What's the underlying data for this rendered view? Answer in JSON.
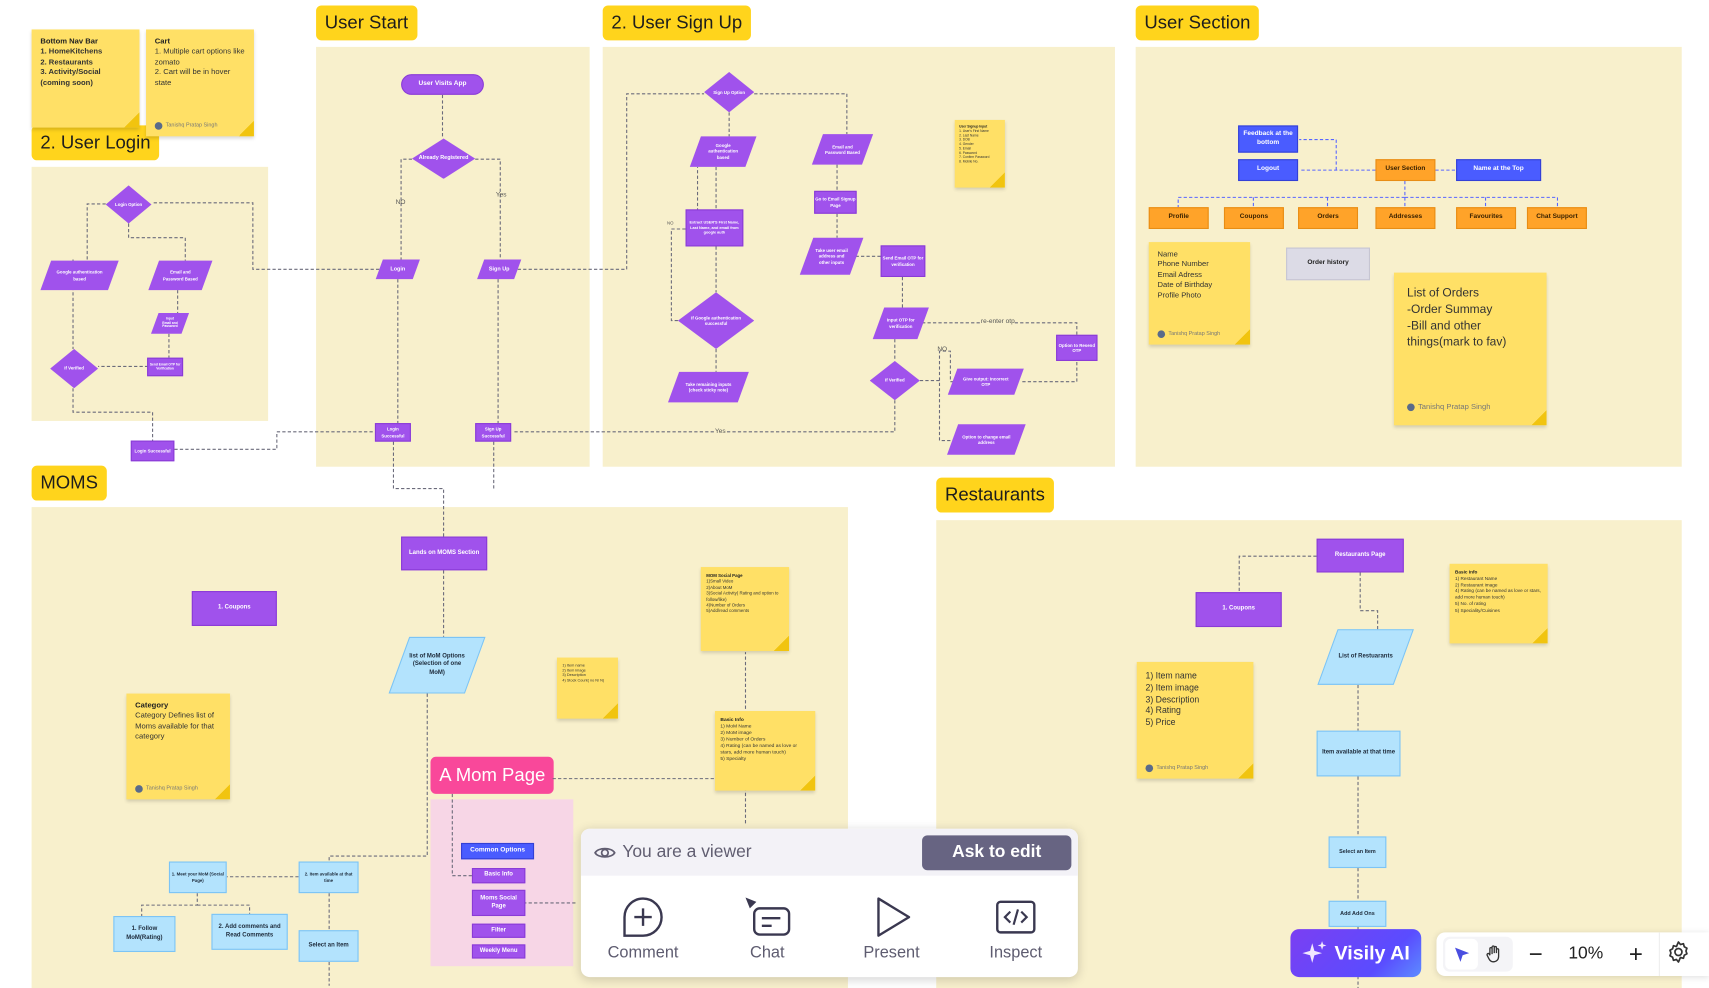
{
  "sections": {
    "user_start": "User Start",
    "sign_up": "2. User Sign Up",
    "user_section": "User Section",
    "user_login": "2. User Login",
    "moms": "MOMS",
    "restaurants": "Restaurants",
    "mom_page": "A Mom Page"
  },
  "author": "Tanishq Pratap Singh",
  "stickies": {
    "nav": {
      "title": "Bottom Nav Bar",
      "items": [
        "1. HomeKitchens",
        "2. Restaurants",
        "3. Activity/Social (coming soon)"
      ]
    },
    "cart": {
      "title": "Cart",
      "items": [
        "1. Multiple cart options like zomato",
        "2. Cart will be in hover state"
      ]
    },
    "signup_input": {
      "title": "User Signup Input",
      "items": [
        "1. User's First Name",
        "2. Last Name",
        "3. DOB",
        "4. Gender",
        "5. Email",
        "6. Password",
        "7. Confirm Password",
        "8. Mobile No."
      ]
    },
    "profile": {
      "items": [
        "Name",
        "Phone Number",
        "Email Adress",
        "Date of Birthday",
        "Profile Photo"
      ]
    },
    "orders": {
      "items": [
        "List of Orders",
        "-Order Summay",
        "-Bill and other",
        "things(mark to fav)"
      ]
    },
    "item_small": {
      "items": [
        "1) Item name",
        "2) Item image",
        "3) Description",
        "4) Stock Count( no N/ N)"
      ]
    },
    "mom_social": {
      "title": "MOM Social Page",
      "items": [
        "1)Small Video",
        "2)About MoM",
        "3)Social Activity( Rating and option to follow/like)",
        "4)Number of Orders",
        "5)Add/read comments"
      ]
    },
    "mom_basic": {
      "title": "Basic Info",
      "items": [
        "1) MoM Name",
        "2) MoM image",
        "3) Number of Orders",
        "4) Rating (can be named as love or stars, add more human touch)",
        "5) Specialty"
      ]
    },
    "category": {
      "title": "Category",
      "body": "Category Defines list of Moms available for that category"
    },
    "rest_item": {
      "items": [
        "1) Item name",
        "2) Item image",
        "3) Description",
        "4) Rating",
        "5) Price"
      ]
    },
    "rest_basic": {
      "title": "Basic Info",
      "items": [
        "1) Restaurant Name",
        "2) Restaurant image",
        "4) Rating (can be named as love or stars, add more human touch)",
        "5) No. of rating",
        "5) Speciality/Cuisines"
      ]
    }
  },
  "nodes": {
    "user_visits_app": "User Visits App",
    "already_registered": "Already Registered",
    "login": "Login",
    "sign_up": "Sign Up",
    "login_successful": "Login Successful",
    "sign_up_successful": "Sign Up Successful",
    "no": "NO",
    "yes": "Yes",
    "login_option": "Login Option",
    "google_auth": "Google authentication based",
    "email_pw": "Email and Password Based",
    "input_email": "Input Email and Password",
    "send_otp_login": "Send Email OTP for Verification",
    "if_verified": "If Verified",
    "login_successful2": "Login Successful",
    "signup_option": "Sign Up Option",
    "extract": "Extract USER'S First Name, Last Name, and email from google auth",
    "if_google": "If Google authentication successful",
    "take_remaining": "Take remaining inputs (check sticky note)",
    "go_email_signup": "Go to Email Signup Page",
    "take_email": "Take user email address and other inputs",
    "send_otp": "Send Email OTP for verification",
    "input_otp": "Input OTP for verification",
    "incorrect_otp": "Give output: Incorrect OTP",
    "resend_otp": "Option to Resend OTP",
    "change_email": "Option to change email address",
    "re_enter": "re-enter otp",
    "feedback": "Feedback at the bottom",
    "logout": "Logout",
    "user_section": "User Section",
    "name_top": "Name at the Top",
    "profile": "Profile",
    "coupons": "Coupons",
    "orders": "Orders",
    "addresses": "Addresses",
    "favourites": "Favourites",
    "chat_support": "Chat Support",
    "order_history": "Order history",
    "lands_moms": "Lands on MOMS Section",
    "coupons1": "1. Coupons",
    "mom_list": "list of MoM Options (Selection of one MoM)",
    "meet_mom": "1. Meet your MoM (Social Page)",
    "item_available": "2. Item available at that time",
    "follow": "1. Follow MoM(Rating)",
    "add_comments": "2. Add comments and Read Comments",
    "select_item": "Select an Item",
    "common_options": "Common Options",
    "basic_info": "Basic Info",
    "moms_social": "Moms Social Page",
    "filter": "Filter",
    "weekly_menu": "Weekly Menu",
    "rest_page": "Restaurants Page",
    "rest_coupons": "1. Coupons",
    "rest_list": "List of Restuarants",
    "rest_item_avail": "Item available at that time",
    "rest_select": "Select an Item",
    "add_ons": "Add Add Ons"
  },
  "viewer_panel": {
    "status": "You are a viewer",
    "ask_to_edit": "Ask to edit",
    "tools": [
      "Comment",
      "Chat",
      "Present",
      "Inspect"
    ]
  },
  "visily_ai": "Visily AI",
  "zoom": {
    "level": "10%",
    "active_tool": "select"
  },
  "colors": {
    "frame": "#f8f0cc",
    "section_label": "#ffd41c",
    "flow_purple": "#a052ec",
    "blue": "#4a5cff",
    "orange": "#ffa329",
    "cyan": "#b3e3fd",
    "pink": "#f9489a",
    "sticky": "#ffe066"
  }
}
